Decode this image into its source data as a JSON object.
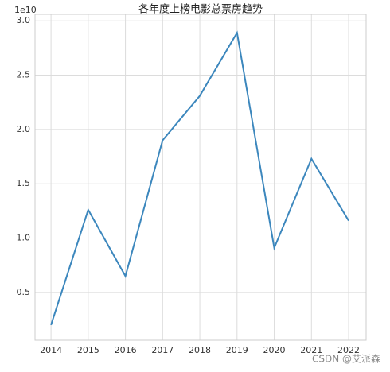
{
  "chart_data": {
    "type": "line",
    "title": "各年度上榜电影总票房趋势",
    "y_offset_label": "1e10",
    "x": [
      2014,
      2015,
      2016,
      2017,
      2018,
      2019,
      2020,
      2021,
      2022
    ],
    "series": [
      {
        "color": "#3c87bd",
        "values": [
          0.2,
          1.26,
          0.65,
          1.9,
          2.31,
          2.89,
          0.91,
          1.73,
          1.16
        ]
      }
    ],
    "xlim": [
      2013.57,
      2022.47
    ],
    "xticks": [
      2014,
      2015,
      2016,
      2017,
      2018,
      2019,
      2020,
      2021,
      2022
    ],
    "ylim": [
      0.06,
      3.06
    ],
    "yticks": [
      0.5,
      {
        "value": 1,
        "label": "1.0"
      },
      1.5,
      {
        "value": 2,
        "label": "2.0"
      },
      2.5,
      {
        "value": 3,
        "label": "3.0"
      }
    ],
    "grid": true
  },
  "watermark": "CSDN @艾派森"
}
